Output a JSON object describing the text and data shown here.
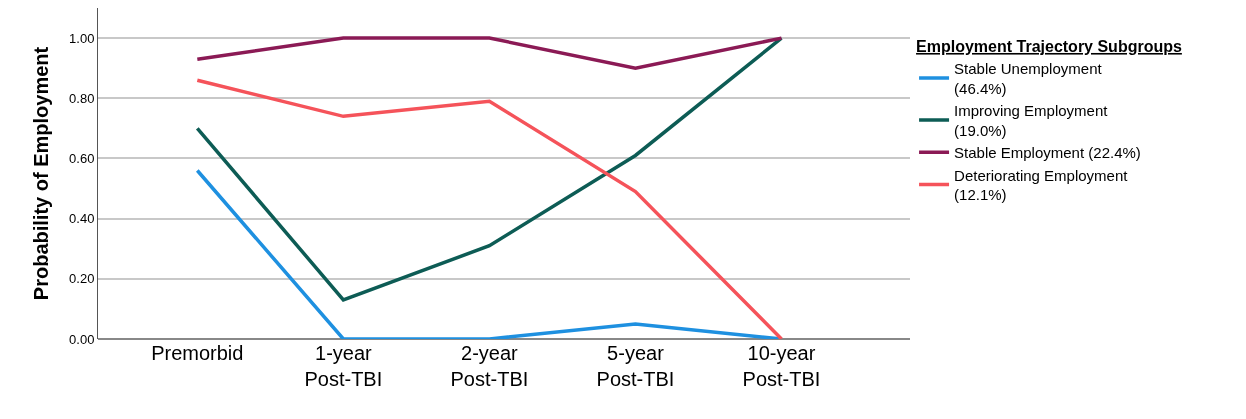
{
  "chart_data": {
    "type": "line",
    "ylabel": "Probability of Employment",
    "legend_title": "Employment Trajectory Subgroups",
    "categories": [
      "Premorbid",
      "1-year Post-TBI",
      "2-year Post-TBI",
      "5-year Post-TBI",
      "10-year Post-TBI"
    ],
    "series": [
      {
        "name": "Stable Unemployment (46.4%)",
        "color": "#1e90e0",
        "values": [
          0.56,
          0.0,
          0.0,
          0.05,
          0.0
        ]
      },
      {
        "name": "Improving Employment (19.0%)",
        "color": "#0d5c55",
        "values": [
          0.7,
          0.13,
          0.31,
          0.61,
          1.0
        ]
      },
      {
        "name": "Stable Employment (22.4%)",
        "color": "#8b1a55",
        "values": [
          0.93,
          1.0,
          1.0,
          0.9,
          1.0
        ]
      },
      {
        "name": "Deteriorating Employment (12.1%)",
        "color": "#f5535a",
        "values": [
          0.86,
          0.74,
          0.79,
          0.49,
          0.0
        ]
      }
    ],
    "ylim": [
      0,
      1.1
    ],
    "yticks": [
      {
        "value": 0,
        "label": "0.00"
      },
      {
        "value": 0.2,
        "label": "0.20"
      },
      {
        "value": 0.4,
        "label": "0.40"
      },
      {
        "value": 0.6,
        "label": "0.60"
      },
      {
        "value": 0.8,
        "label": "0.80"
      },
      {
        "value": 1.0,
        "label": "1.00"
      }
    ],
    "grid": "y",
    "legend": "right",
    "marker": "none",
    "line_style": "solid"
  }
}
